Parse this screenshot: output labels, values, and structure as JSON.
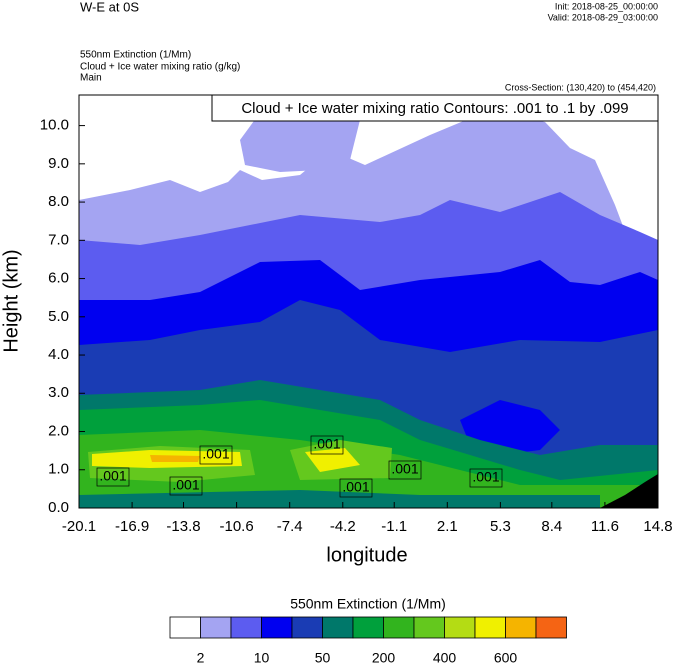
{
  "chart_data": {
    "type": "contour",
    "title": "W-E at 0S",
    "init": "Init: 2018-08-25_00:00:00",
    "valid": "Valid: 2018-08-29_03:00:00",
    "field_1": "550nm Extinction   (1/Mm)",
    "field_2": "Cloud + Ice water mixing ratio   (g/kg)",
    "domain": "Main",
    "cross_section": "Cross-Section: (130,420) to (454,420)",
    "contour_info": "Cloud + Ice water mixing ratio Contours: .001 to .1 by .099",
    "contour_labels": [
      ".001",
      ".001",
      ".001",
      ".001",
      ".001",
      ".001",
      ".001"
    ],
    "x_label": "longitude",
    "y_label": "Height (km)",
    "xlim": [
      -20.1,
      14.8
    ],
    "ylim": [
      0,
      10.8
    ],
    "xticks": [
      -20.1,
      -16.9,
      -13.8,
      -10.6,
      -7.4,
      -4.2,
      -1.1,
      2.1,
      5.3,
      8.4,
      11.6,
      14.8
    ],
    "yticks": [
      {
        "value": 0,
        "label": "0.0"
      },
      {
        "value": 1,
        "label": "1.0"
      },
      {
        "value": 2,
        "label": "2.0"
      },
      {
        "value": 3,
        "label": "3.0"
      },
      {
        "value": 4,
        "label": "4.0"
      },
      {
        "value": 5,
        "label": "5.0"
      },
      {
        "value": 6,
        "label": "6.0"
      },
      {
        "value": 7,
        "label": "7.0"
      },
      {
        "value": 8,
        "label": "8.0"
      },
      {
        "value": 9,
        "label": "9.0"
      },
      {
        "value": 10,
        "label": "10.0"
      }
    ],
    "colorbar": {
      "title": "550nm Extinction  (1/Mm)",
      "colors": [
        "#ffffff",
        "#a4a4f2",
        "#5c5cf0",
        "#0000f0",
        "#1a3cb4",
        "#00786a",
        "#00a03c",
        "#32b41e",
        "#64c81e",
        "#b4dc14",
        "#f0f000",
        "#f5b400",
        "#f56414",
        "#f00000"
      ],
      "labels": [
        2,
        10,
        50,
        200,
        400,
        600
      ]
    }
  }
}
